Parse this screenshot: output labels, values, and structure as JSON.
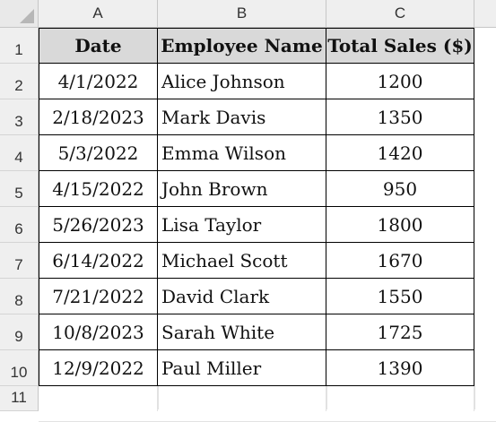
{
  "columns": [
    "A",
    "B",
    "C"
  ],
  "row_numbers": [
    "1",
    "2",
    "3",
    "4",
    "5",
    "6",
    "7",
    "8",
    "9",
    "10",
    "11"
  ],
  "headers": [
    "Date",
    "Employee Name",
    "Total Sales ($)"
  ],
  "rows": [
    {
      "date": "4/1/2022",
      "name": "Alice Johnson",
      "sales": "1200"
    },
    {
      "date": "2/18/2023",
      "name": "Mark Davis",
      "sales": "1350"
    },
    {
      "date": "5/3/2022",
      "name": "Emma Wilson",
      "sales": "1420"
    },
    {
      "date": "4/15/2022",
      "name": "John Brown",
      "sales": "950"
    },
    {
      "date": "5/26/2023",
      "name": "Lisa Taylor",
      "sales": "1800"
    },
    {
      "date": "6/14/2022",
      "name": "Michael Scott",
      "sales": "1670"
    },
    {
      "date": "7/21/2022",
      "name": "David Clark",
      "sales": "1550"
    },
    {
      "date": "10/8/2023",
      "name": "Sarah White",
      "sales": "1725"
    },
    {
      "date": "12/9/2022",
      "name": "Paul Miller",
      "sales": "1390"
    }
  ],
  "colors": {
    "header_fill": "#d9d9d9",
    "headings_bg": "#efefef"
  }
}
